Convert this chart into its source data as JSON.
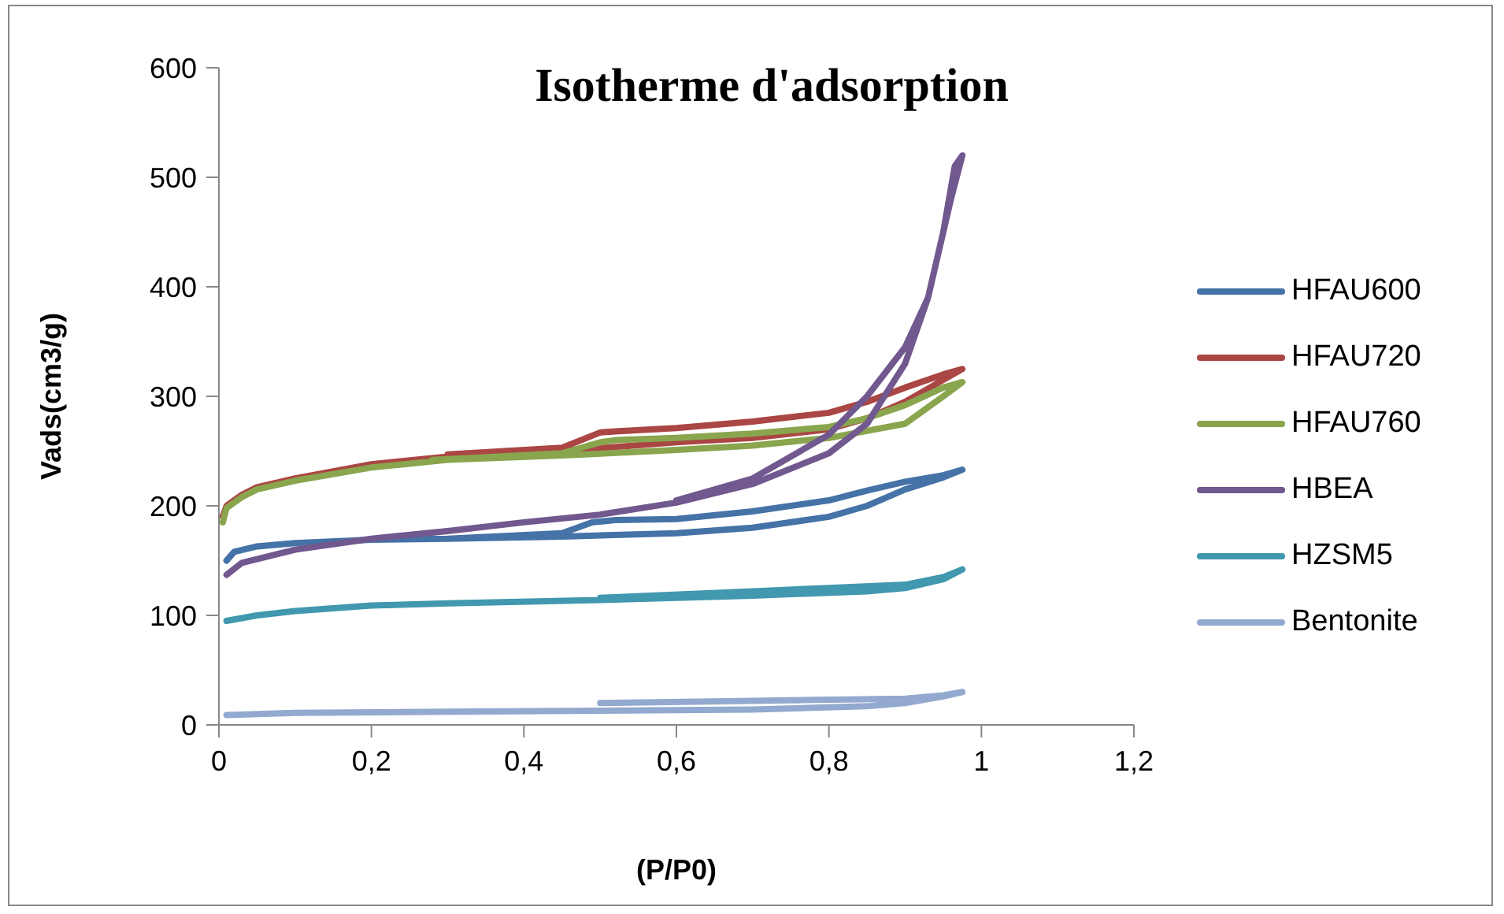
{
  "chart_data": {
    "type": "line",
    "title": "Isotherme d'adsorption",
    "xlabel": "(P/P0)",
    "ylabel": "Vads(cm3/g)",
    "xlim": [
      0,
      1.2
    ],
    "xticks": [
      0,
      {
        "value": 0.2,
        "label": "0,2"
      },
      {
        "value": 0.4,
        "label": "0,4"
      },
      {
        "value": 0.6,
        "label": "0,6"
      },
      {
        "value": 0.8,
        "label": "0,8"
      },
      1,
      {
        "value": 1.2,
        "label": "1,2"
      }
    ],
    "ylim": [
      0,
      600
    ],
    "yticks": [
      0,
      100,
      200,
      300,
      400,
      500,
      600
    ],
    "grid": false,
    "legend": "right",
    "marker": "none",
    "line_style": "solid",
    "series": [
      {
        "name": "HFAU600",
        "color": "#4572a7",
        "x": [
          0.01,
          0.02,
          0.05,
          0.1,
          0.2,
          0.3,
          0.45,
          0.6,
          0.7,
          0.8,
          0.85,
          0.9,
          0.95,
          0.975,
          0.95,
          0.9,
          0.85,
          0.8,
          0.7,
          0.6,
          0.52,
          0.49,
          0.45,
          0.3
        ],
        "values": [
          150,
          158,
          163,
          166,
          169,
          170,
          172,
          175,
          180,
          190,
          200,
          215,
          226,
          233,
          228,
          222,
          214,
          205,
          195,
          188,
          187,
          185,
          175,
          170
        ]
      },
      {
        "name": "HFAU720",
        "color": "#aa4643",
        "x": [
          0.005,
          0.01,
          0.03,
          0.05,
          0.1,
          0.2,
          0.3,
          0.45,
          0.6,
          0.7,
          0.8,
          0.85,
          0.9,
          0.95,
          0.975,
          0.95,
          0.9,
          0.85,
          0.8,
          0.7,
          0.6,
          0.52,
          0.5,
          0.45,
          0.3
        ],
        "values": [
          190,
          200,
          210,
          217,
          225,
          238,
          245,
          250,
          258,
          262,
          270,
          280,
          295,
          315,
          325,
          320,
          308,
          295,
          285,
          277,
          271,
          268,
          267,
          253,
          247
        ]
      },
      {
        "name": "HFAU760",
        "color": "#89a54e",
        "x": [
          0.005,
          0.01,
          0.03,
          0.05,
          0.1,
          0.2,
          0.3,
          0.45,
          0.6,
          0.7,
          0.8,
          0.9,
          0.95,
          0.975,
          0.95,
          0.9,
          0.85,
          0.8,
          0.7,
          0.6,
          0.52,
          0.5,
          0.45,
          0.28
        ],
        "values": [
          185,
          198,
          208,
          215,
          223,
          235,
          242,
          246,
          251,
          255,
          262,
          275,
          300,
          313,
          308,
          292,
          280,
          272,
          266,
          262,
          260,
          258,
          248,
          242
        ]
      },
      {
        "name": "HBEA",
        "color": "#71588f",
        "x": [
          0.01,
          0.03,
          0.1,
          0.2,
          0.3,
          0.4,
          0.5,
          0.6,
          0.7,
          0.8,
          0.85,
          0.9,
          0.93,
          0.96,
          0.975,
          0.965,
          0.95,
          0.93,
          0.9,
          0.85,
          0.8,
          0.7,
          0.6
        ],
        "values": [
          137,
          148,
          160,
          170,
          177,
          185,
          192,
          203,
          220,
          248,
          275,
          330,
          390,
          480,
          520,
          510,
          450,
          390,
          345,
          300,
          265,
          225,
          205
        ]
      },
      {
        "name": "HZSM5",
        "color": "#4198af",
        "x": [
          0.01,
          0.05,
          0.1,
          0.2,
          0.3,
          0.5,
          0.7,
          0.85,
          0.9,
          0.95,
          0.975,
          0.95,
          0.9,
          0.8,
          0.7,
          0.5
        ],
        "values": [
          95,
          100,
          104,
          109,
          111,
          114,
          118,
          122,
          125,
          133,
          142,
          135,
          128,
          125,
          122,
          116
        ]
      },
      {
        "name": "Bentonite",
        "color": "#93a9cf",
        "x": [
          0.01,
          0.1,
          0.3,
          0.5,
          0.7,
          0.85,
          0.9,
          0.95,
          0.975,
          0.95,
          0.9,
          0.7,
          0.5
        ],
        "values": [
          9,
          11,
          12,
          13,
          14,
          17,
          20,
          26,
          30,
          27,
          24,
          22,
          20
        ]
      }
    ]
  }
}
